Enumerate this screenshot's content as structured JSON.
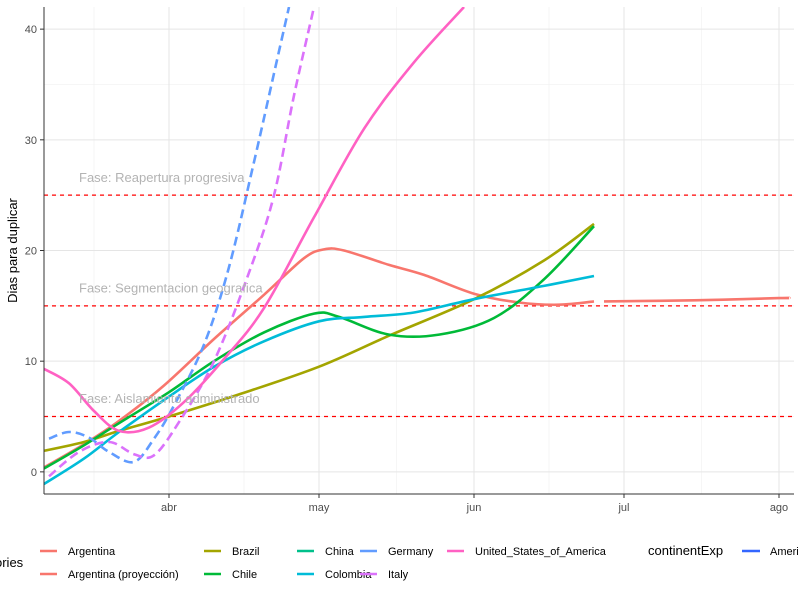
{
  "chart_data": {
    "type": "line",
    "title": "",
    "xlabel": "",
    "ylabel": "Dias para duplicar",
    "x_axis": {
      "type": "date",
      "range": [
        "2020-03-07",
        "2020-08-04"
      ],
      "ticks": [
        {
          "date": "2020-04-01",
          "label": "abr"
        },
        {
          "date": "2020-05-01",
          "label": "may"
        },
        {
          "date": "2020-06-01",
          "label": "jun"
        },
        {
          "date": "2020-07-01",
          "label": "jul"
        },
        {
          "date": "2020-08-01",
          "label": "ago"
        }
      ]
    },
    "y_axis": {
      "range": [
        -2,
        42
      ],
      "ticks": [
        0,
        10,
        20,
        30,
        40
      ]
    },
    "grid": true,
    "legend_position": "bottom",
    "series": [
      {
        "name": "Argentina",
        "color": "#F8766D",
        "dash": "solid",
        "points": [
          [
            "2020-03-07",
            0.4
          ],
          [
            "2020-03-15",
            2.5
          ],
          [
            "2020-03-22",
            4.6
          ],
          [
            "2020-03-31",
            7.8
          ],
          [
            "2020-04-10",
            12.0
          ],
          [
            "2020-04-20",
            16.0
          ],
          [
            "2020-04-28",
            19.3
          ],
          [
            "2020-05-02",
            20.1
          ],
          [
            "2020-05-06",
            20.0
          ],
          [
            "2020-05-15",
            18.7
          ],
          [
            "2020-05-22",
            17.8
          ],
          [
            "2020-06-01",
            16.1
          ],
          [
            "2020-06-10",
            15.3
          ],
          [
            "2020-06-18",
            15.1
          ],
          [
            "2020-06-25",
            15.4
          ]
        ]
      },
      {
        "name": "Argentina (proyección)",
        "color": "#F8766D",
        "dash": "solid",
        "points": [
          [
            "2020-06-27",
            15.4
          ],
          [
            "2020-07-15",
            15.5
          ],
          [
            "2020-08-01",
            15.7
          ],
          [
            "2020-08-03",
            15.7
          ]
        ]
      },
      {
        "name": "Brazil",
        "color": "#A3A500",
        "dash": "solid",
        "points": [
          [
            "2020-03-07",
            1.9
          ],
          [
            "2020-03-15",
            2.7
          ],
          [
            "2020-03-22",
            3.7
          ],
          [
            "2020-04-01",
            5.0
          ],
          [
            "2020-04-15",
            7.0
          ],
          [
            "2020-05-01",
            9.5
          ],
          [
            "2020-05-15",
            12.3
          ],
          [
            "2020-06-01",
            15.6
          ],
          [
            "2020-06-15",
            19.1
          ],
          [
            "2020-06-25",
            22.4
          ]
        ]
      },
      {
        "name": "Chile",
        "color": "#00BA38",
        "dash": "solid",
        "points": [
          [
            "2020-03-07",
            0.3
          ],
          [
            "2020-03-15",
            2.4
          ],
          [
            "2020-03-22",
            4.4
          ],
          [
            "2020-04-01",
            7.2
          ],
          [
            "2020-04-10",
            10.0
          ],
          [
            "2020-04-20",
            12.6
          ],
          [
            "2020-04-30",
            14.3
          ],
          [
            "2020-05-05",
            14.0
          ],
          [
            "2020-05-15",
            12.4
          ],
          [
            "2020-05-25",
            12.4
          ],
          [
            "2020-06-05",
            13.9
          ],
          [
            "2020-06-15",
            17.4
          ],
          [
            "2020-06-25",
            22.2
          ]
        ]
      },
      {
        "name": "China",
        "color": "#00C08B",
        "dash": "solid",
        "points": []
      },
      {
        "name": "Colombia",
        "color": "#00BCD8",
        "dash": "solid",
        "points": [
          [
            "2020-03-07",
            -1.1
          ],
          [
            "2020-03-15",
            1.2
          ],
          [
            "2020-03-22",
            3.6
          ],
          [
            "2020-04-01",
            6.8
          ],
          [
            "2020-04-10",
            9.5
          ],
          [
            "2020-04-20",
            11.8
          ],
          [
            "2020-05-01",
            13.6
          ],
          [
            "2020-05-10",
            14.0
          ],
          [
            "2020-05-20",
            14.4
          ],
          [
            "2020-06-01",
            15.6
          ],
          [
            "2020-06-15",
            16.8
          ],
          [
            "2020-06-25",
            17.7
          ]
        ]
      },
      {
        "name": "Germany",
        "color": "#619CFF",
        "dash": "dashed",
        "points": [
          [
            "2020-03-08",
            3.0
          ],
          [
            "2020-03-12",
            3.6
          ],
          [
            "2020-03-16",
            3.1
          ],
          [
            "2020-03-20",
            1.8
          ],
          [
            "2020-03-25",
            0.9
          ],
          [
            "2020-03-29",
            3.0
          ],
          [
            "2020-04-02",
            6.0
          ],
          [
            "2020-04-08",
            11.5
          ],
          [
            "2020-04-13",
            18.5
          ],
          [
            "2020-04-18",
            28.0
          ],
          [
            "2020-04-22",
            36.0
          ],
          [
            "2020-04-25",
            42.0
          ]
        ]
      },
      {
        "name": "Italy",
        "color": "#DB72FB",
        "dash": "dashed",
        "points": [
          [
            "2020-03-08",
            -0.4
          ],
          [
            "2020-03-14",
            1.8
          ],
          [
            "2020-03-20",
            2.7
          ],
          [
            "2020-03-25",
            1.6
          ],
          [
            "2020-03-29",
            1.5
          ],
          [
            "2020-04-03",
            4.5
          ],
          [
            "2020-04-10",
            10.0
          ],
          [
            "2020-04-17",
            18.0
          ],
          [
            "2020-04-22",
            25.0
          ],
          [
            "2020-04-26",
            34.0
          ],
          [
            "2020-04-30",
            42.0
          ]
        ]
      },
      {
        "name": "United_States_of_America",
        "color": "#FF61C3",
        "dash": "solid",
        "points": [
          [
            "2020-03-07",
            9.3
          ],
          [
            "2020-03-12",
            8.0
          ],
          [
            "2020-03-17",
            5.5
          ],
          [
            "2020-03-22",
            3.7
          ],
          [
            "2020-03-28",
            4.0
          ],
          [
            "2020-04-04",
            6.3
          ],
          [
            "2020-04-12",
            10.2
          ],
          [
            "2020-04-20",
            14.8
          ],
          [
            "2020-04-30",
            23.0
          ],
          [
            "2020-05-10",
            31.0
          ],
          [
            "2020-05-20",
            37.0
          ],
          [
            "2020-05-30",
            42.0
          ]
        ]
      }
    ],
    "reference_lines": [
      {
        "y": 5,
        "label": "Fase: Aislamiento administrado",
        "color": "#ff0000"
      },
      {
        "y": 15,
        "label": "Fase: Segmentacion geografica",
        "color": "#ff0000"
      },
      {
        "y": 25,
        "label": "Fase: Reapertura progresiva",
        "color": "#ff0000"
      }
    ],
    "legend": {
      "title": "ories",
      "items": [
        {
          "label": "Argentina",
          "color": "#F8766D"
        },
        {
          "label": "Argentina (proyección)",
          "color": "#F8766D"
        },
        {
          "label": "Brazil",
          "color": "#A3A500"
        },
        {
          "label": "Chile",
          "color": "#00BA38"
        },
        {
          "label": "China",
          "color": "#00C08B"
        },
        {
          "label": "Colombia",
          "color": "#00BCD8"
        },
        {
          "label": "Germany",
          "color": "#619CFF"
        },
        {
          "label": "Italy",
          "color": "#DB72FB"
        },
        {
          "label": "United_States_of_America",
          "color": "#FF61C3"
        }
      ],
      "second_title": "continentExp",
      "second_items": [
        {
          "label": "Ameri",
          "color": "#3366FF"
        }
      ]
    }
  }
}
